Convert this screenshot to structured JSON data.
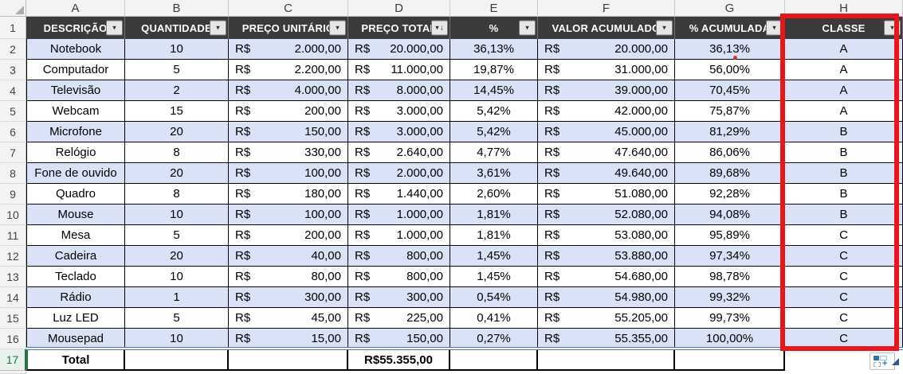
{
  "sheet": {
    "currency": "R$",
    "column_letters": [
      "A",
      "B",
      "C",
      "D",
      "E",
      "F",
      "G",
      "H"
    ],
    "header_row_number": "1",
    "headers": [
      {
        "letter": "A",
        "label": "DESCRIÇÃO",
        "filter": "dropdown"
      },
      {
        "letter": "B",
        "label": "QUANTIDADE",
        "filter": "dropdown"
      },
      {
        "letter": "C",
        "label": "PREÇO UNITÁRIO",
        "filter": "dropdown"
      },
      {
        "letter": "D",
        "label": "PREÇO TOTAL",
        "filter": "sort-desc"
      },
      {
        "letter": "E",
        "label": "%",
        "filter": "dropdown"
      },
      {
        "letter": "F",
        "label": "VALOR ACUMULADO",
        "filter": "dropdown"
      },
      {
        "letter": "G",
        "label": "% ACUMULADA",
        "filter": "dropdown"
      },
      {
        "letter": "H",
        "label": "CLASSE",
        "filter": "dropdown"
      }
    ],
    "rows": [
      {
        "n": 2,
        "desc": "Notebook",
        "qty": "10",
        "unit": "2.000,00",
        "total": "20.000,00",
        "pct": "36,13%",
        "accum": "20.000,00",
        "accum_pct": "36,13%",
        "classe": "A",
        "flag_dot": true
      },
      {
        "n": 3,
        "desc": "Computador",
        "qty": "5",
        "unit": "2.200,00",
        "total": "11.000,00",
        "pct": "19,87%",
        "accum": "31.000,00",
        "accum_pct": "56,00%",
        "classe": "A"
      },
      {
        "n": 4,
        "desc": "Televisão",
        "qty": "2",
        "unit": "4.000,00",
        "total": "8.000,00",
        "pct": "14,45%",
        "accum": "39.000,00",
        "accum_pct": "70,45%",
        "classe": "A"
      },
      {
        "n": 5,
        "desc": "Webcam",
        "qty": "15",
        "unit": "200,00",
        "total": "3.000,00",
        "pct": "5,42%",
        "accum": "42.000,00",
        "accum_pct": "75,87%",
        "classe": "A"
      },
      {
        "n": 6,
        "desc": "Microfone",
        "qty": "20",
        "unit": "150,00",
        "total": "3.000,00",
        "pct": "5,42%",
        "accum": "45.000,00",
        "accum_pct": "81,29%",
        "classe": "B"
      },
      {
        "n": 7,
        "desc": "Relógio",
        "qty": "8",
        "unit": "330,00",
        "total": "2.640,00",
        "pct": "4,77%",
        "accum": "47.640,00",
        "accum_pct": "86,06%",
        "classe": "B"
      },
      {
        "n": 8,
        "desc": "Fone de ouvido",
        "qty": "20",
        "unit": "100,00",
        "total": "2.000,00",
        "pct": "3,61%",
        "accum": "49.640,00",
        "accum_pct": "89,68%",
        "classe": "B"
      },
      {
        "n": 9,
        "desc": "Quadro",
        "qty": "8",
        "unit": "180,00",
        "total": "1.440,00",
        "pct": "2,60%",
        "accum": "51.080,00",
        "accum_pct": "92,28%",
        "classe": "B"
      },
      {
        "n": 10,
        "desc": "Mouse",
        "qty": "10",
        "unit": "100,00",
        "total": "1.000,00",
        "pct": "1,81%",
        "accum": "52.080,00",
        "accum_pct": "94,08%",
        "classe": "B"
      },
      {
        "n": 11,
        "desc": "Mesa",
        "qty": "5",
        "unit": "200,00",
        "total": "1.000,00",
        "pct": "1,81%",
        "accum": "53.080,00",
        "accum_pct": "95,89%",
        "classe": "C"
      },
      {
        "n": 12,
        "desc": "Cadeira",
        "qty": "20",
        "unit": "40,00",
        "total": "800,00",
        "pct": "1,45%",
        "accum": "53.880,00",
        "accum_pct": "97,34%",
        "classe": "C"
      },
      {
        "n": 13,
        "desc": "Teclado",
        "qty": "10",
        "unit": "80,00",
        "total": "800,00",
        "pct": "1,45%",
        "accum": "54.680,00",
        "accum_pct": "98,78%",
        "classe": "C"
      },
      {
        "n": 14,
        "desc": "Rádio",
        "qty": "1",
        "unit": "300,00",
        "total": "300,00",
        "pct": "0,54%",
        "accum": "54.980,00",
        "accum_pct": "99,32%",
        "classe": "C"
      },
      {
        "n": 15,
        "desc": "Luz LED",
        "qty": "5",
        "unit": "45,00",
        "total": "225,00",
        "pct": "0,41%",
        "accum": "55.205,00",
        "accum_pct": "99,73%",
        "classe": "C"
      },
      {
        "n": 16,
        "desc": "Mousepad",
        "qty": "10",
        "unit": "15,00",
        "total": "150,00",
        "pct": "0,27%",
        "accum": "55.355,00",
        "accum_pct": "100,00%",
        "classe": "C"
      }
    ],
    "total_row": {
      "n": "17",
      "label": "Total",
      "total": "55.355,00"
    }
  },
  "icons": {
    "filter_chevron": "▾",
    "sort_descending_arrow": "↓",
    "quick_analysis_plus": "+"
  },
  "colors": {
    "header_bg": "#3B3B3B",
    "band_blue": "#D9E2F6",
    "highlight_red": "#E8151A",
    "active_green": "#217346",
    "table_border": "#000000",
    "table_bottom_blue": "#4A72B8"
  }
}
